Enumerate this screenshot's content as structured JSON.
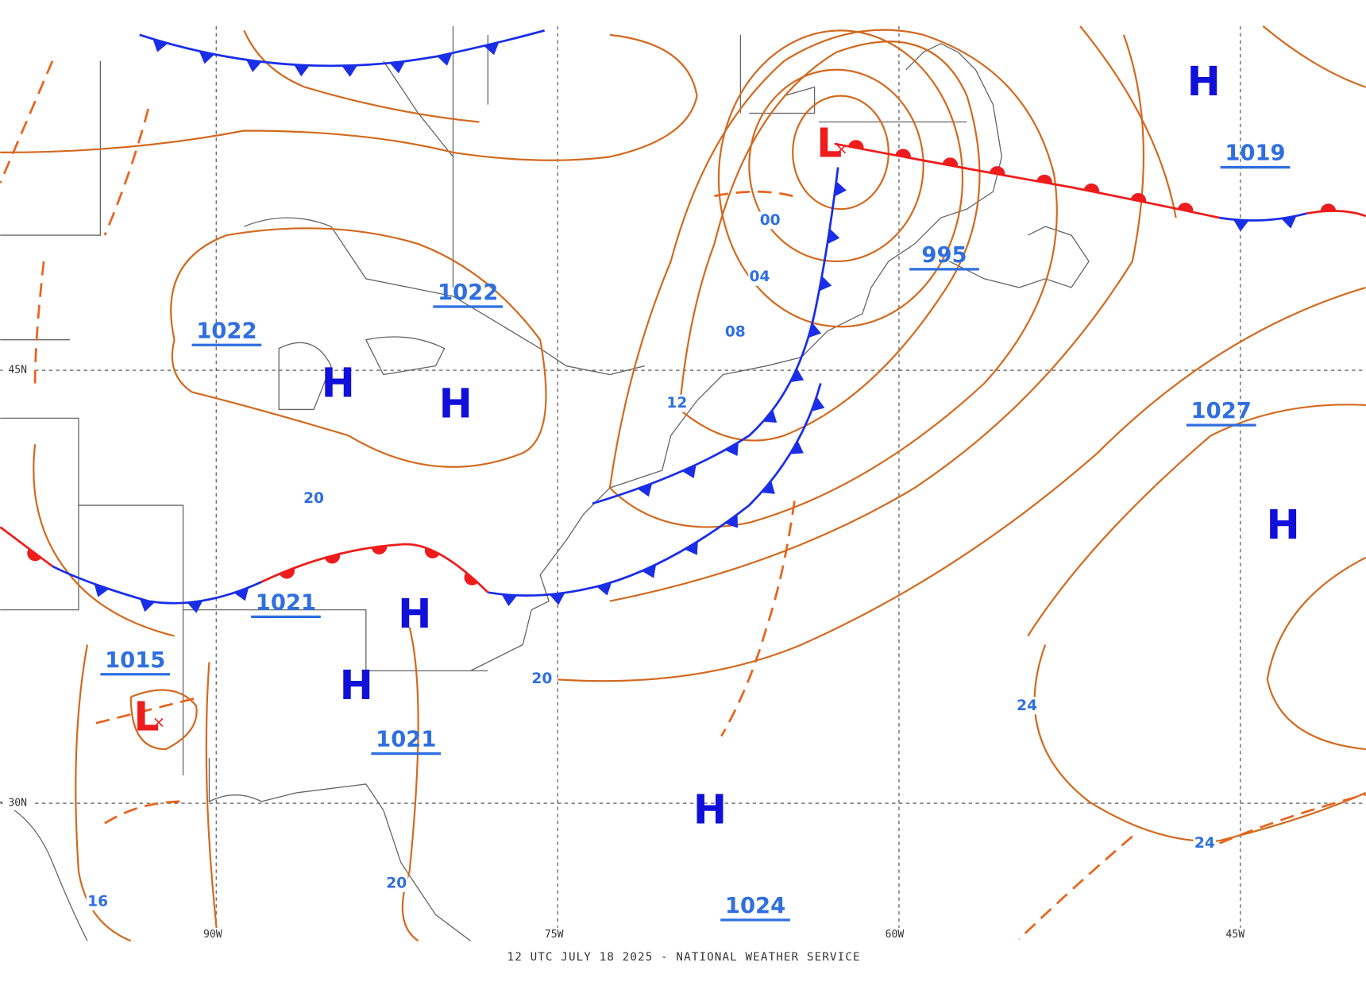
{
  "centers": [
    "H",
    "L",
    "H",
    "H",
    "H",
    "H",
    "H",
    "H",
    "L"
  ],
  "pressure_labels": [
    1022,
    1022,
    1019,
    995,
    1027,
    1021,
    1015,
    1021,
    1024
  ],
  "isobar_labels": [
    "00",
    "04",
    "08",
    "12",
    "16",
    "20",
    "20",
    "20",
    "24",
    "24"
  ],
  "grid_labels": [
    "45N",
    "30N",
    "90W",
    "75W",
    "60W",
    "45W"
  ],
  "footer": "12 UTC JULY 18 2025 - NATIONAL WEATHER SERVICE"
}
